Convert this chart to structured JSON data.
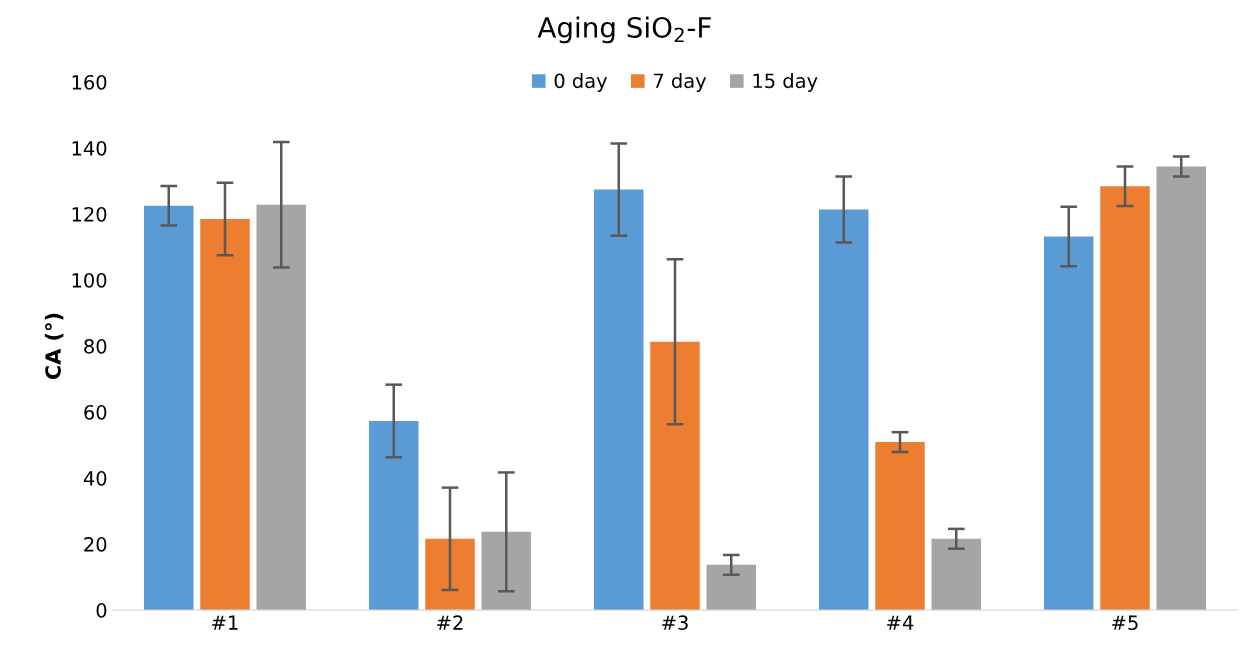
{
  "chart_data": {
    "type": "bar",
    "title": "Aging SiO$_{2}$-F",
    "ylabel": "CA (°)",
    "categories": [
      "#1",
      "#2",
      "#3",
      "#4",
      "#5"
    ],
    "series": [
      {
        "name": "0 day",
        "color": "#5b9bd5",
        "values": [
          122.5,
          57.3,
          127.4,
          121.4,
          113.2
        ],
        "errors": [
          6,
          11,
          14,
          10,
          9
        ]
      },
      {
        "name": "7 day",
        "color": "#ed7d31",
        "values": [
          118.5,
          21.6,
          81.3,
          50.9,
          128.4
        ],
        "errors": [
          11,
          15.5,
          25,
          3,
          6
        ]
      },
      {
        "name": "15 day",
        "color": "#a5a5a5",
        "values": [
          122.8,
          23.7,
          13.7,
          21.6,
          134.4
        ],
        "errors": [
          19,
          18,
          3,
          3,
          3
        ]
      }
    ],
    "ylim": [
      0,
      160
    ],
    "yticks": [
      0,
      20,
      40,
      60,
      80,
      100,
      120,
      140,
      160
    ],
    "grid": false,
    "legend": "top"
  }
}
